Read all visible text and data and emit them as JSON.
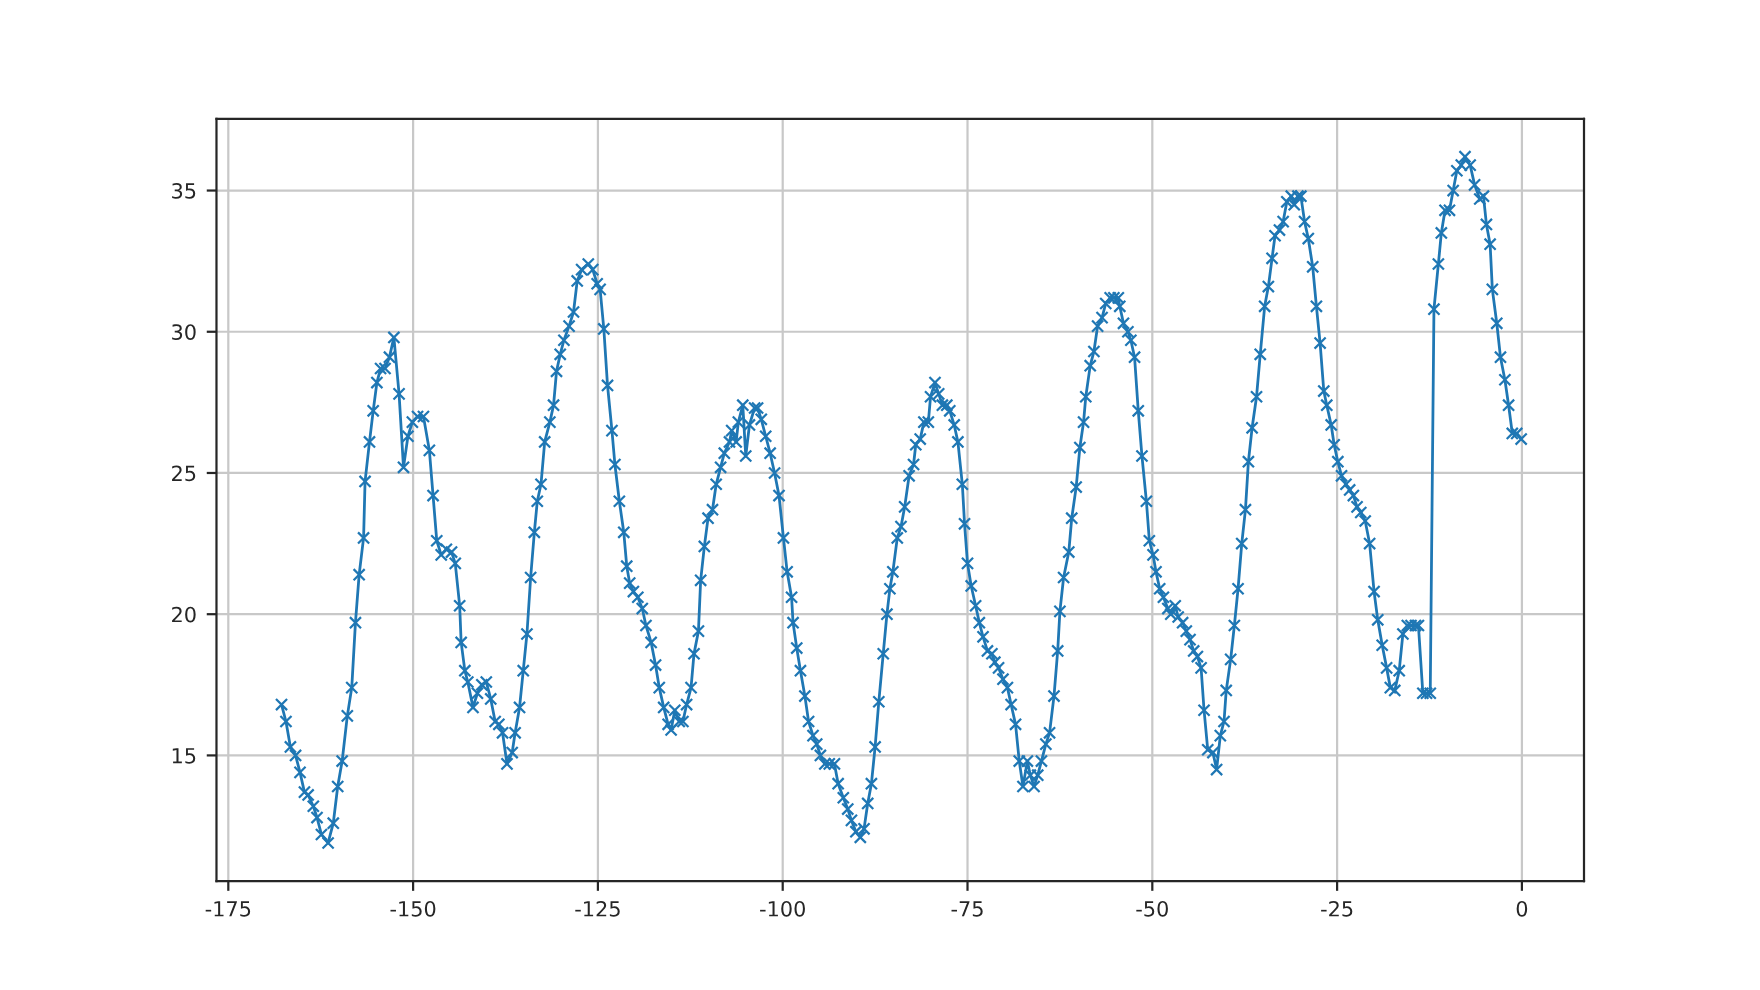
{
  "chart_data": {
    "type": "line",
    "xlim": [
      -176.6,
      8.4
    ],
    "ylim": [
      10.55,
      37.54
    ],
    "xticks": [
      -175,
      -150,
      -125,
      -100,
      -75,
      -50,
      -25,
      0
    ],
    "yticks": [
      15,
      20,
      25,
      30,
      35
    ],
    "grid": true,
    "marker": "cross",
    "line_style": "solid",
    "series": [
      {
        "color": "#1f77b4",
        "x": [
          -167.8,
          -167.2,
          -166.6,
          -165.9,
          -165.3,
          -164.7,
          -164.2,
          -163.5,
          -163.0,
          -162.4,
          -161.5,
          -160.8,
          -160.2,
          -159.6,
          -158.9,
          -158.3,
          -157.8,
          -157.3,
          -156.7,
          -156.5,
          -155.9,
          -155.4,
          -154.9,
          -154.4,
          -153.8,
          -153.2,
          -152.6,
          -151.9,
          -151.3,
          -150.7,
          -150.1,
          -149.4,
          -148.6,
          -147.8,
          -147.3,
          -146.8,
          -146.2,
          -145.5,
          -144.8,
          -144.3,
          -143.7,
          -143.5,
          -143.0,
          -142.6,
          -141.9,
          -141.3,
          -140.7,
          -140.1,
          -139.5,
          -138.9,
          -138.4,
          -137.9,
          -137.3,
          -136.6,
          -136.2,
          -135.6,
          -135.1,
          -134.6,
          -134.1,
          -133.6,
          -133.2,
          -132.7,
          -132.2,
          -131.5,
          -131.0,
          -130.6,
          -130.1,
          -129.6,
          -128.9,
          -128.3,
          -127.8,
          -127.2,
          -126.3,
          -125.7,
          -125.1,
          -124.7,
          -124.2,
          -123.7,
          -123.1,
          -122.7,
          -122.1,
          -121.5,
          -121.1,
          -120.7,
          -120.2,
          -119.6,
          -119.0,
          -118.5,
          -117.8,
          -117.2,
          -116.7,
          -116.1,
          -115.5,
          -115.1,
          -114.6,
          -114.0,
          -113.5,
          -113.0,
          -112.4,
          -112.0,
          -111.4,
          -111.1,
          -110.6,
          -110.1,
          -109.5,
          -109.0,
          -108.4,
          -107.9,
          -107.2,
          -106.9,
          -106.3,
          -106.0,
          -105.4,
          -105.0,
          -104.5,
          -103.8,
          -103.4,
          -102.9,
          -102.3,
          -101.7,
          -101.1,
          -100.5,
          -99.9,
          -99.4,
          -98.8,
          -98.6,
          -98.1,
          -97.6,
          -97.0,
          -96.5,
          -95.9,
          -95.4,
          -94.9,
          -94.3,
          -93.7,
          -93.0,
          -92.5,
          -91.8,
          -91.2,
          -90.7,
          -90.1,
          -89.5,
          -89.0,
          -88.5,
          -88.0,
          -87.5,
          -87.0,
          -86.4,
          -85.9,
          -85.5,
          -85.1,
          -84.5,
          -84.0,
          -83.5,
          -82.9,
          -82.3,
          -82.0,
          -81.4,
          -80.9,
          -80.3,
          -80.0,
          -79.4,
          -78.9,
          -78.4,
          -77.8,
          -77.4,
          -76.8,
          -76.3,
          -75.7,
          -75.4,
          -75.0,
          -74.5,
          -73.9,
          -73.4,
          -72.9,
          -72.3,
          -71.7,
          -71.3,
          -70.8,
          -70.2,
          -69.6,
          -69.1,
          -68.5,
          -68.0,
          -67.5,
          -66.9,
          -66.5,
          -66.0,
          -65.5,
          -65.0,
          -64.4,
          -63.9,
          -63.3,
          -62.8,
          -62.5,
          -62.0,
          -61.3,
          -60.9,
          -60.3,
          -59.8,
          -59.3,
          -59.0,
          -58.4,
          -57.9,
          -57.4,
          -56.8,
          -56.3,
          -55.7,
          -55.2,
          -54.6,
          -54.4,
          -53.9,
          -53.3,
          -52.9,
          -52.4,
          -51.9,
          -51.4,
          -50.8,
          -50.4,
          -49.9,
          -49.5,
          -49.0,
          -48.5,
          -47.9,
          -47.5,
          -46.9,
          -46.5,
          -45.9,
          -45.4,
          -44.9,
          -44.4,
          -43.9,
          -43.4,
          -43.0,
          -42.5,
          -41.8,
          -41.3,
          -40.8,
          -40.3,
          -40.0,
          -39.4,
          -38.9,
          -38.4,
          -37.9,
          -37.4,
          -37.0,
          -36.5,
          -35.9,
          -35.4,
          -34.8,
          -34.3,
          -33.8,
          -33.4,
          -32.8,
          -32.3,
          -31.8,
          -31.2,
          -30.8,
          -30.3,
          -29.9,
          -29.4,
          -28.9,
          -28.3,
          -27.8,
          -27.3,
          -26.8,
          -26.4,
          -25.8,
          -25.4,
          -24.9,
          -24.4,
          -23.8,
          -23.3,
          -22.8,
          -22.3,
          -21.8,
          -21.2,
          -20.6,
          -20.0,
          -19.5,
          -18.9,
          -18.3,
          -17.8,
          -17.2,
          -16.6,
          -16.1,
          -15.5,
          -15.0,
          -14.4,
          -14.0,
          -13.4,
          -12.9,
          -12.4,
          -11.9,
          -11.3,
          -10.9,
          -10.4,
          -9.8,
          -9.3,
          -8.8,
          -8.2,
          -7.7,
          -7.0,
          -6.4,
          -5.7,
          -5.2,
          -4.8,
          -4.3,
          -4.0,
          -3.4,
          -2.9,
          -2.3,
          -1.8,
          -1.3,
          -0.7,
          -0.1
        ],
        "values": [
          16.8,
          16.2,
          15.3,
          15.0,
          14.4,
          13.7,
          13.6,
          13.2,
          12.8,
          12.2,
          11.9,
          12.6,
          13.9,
          14.8,
          16.4,
          17.4,
          19.7,
          21.4,
          22.7,
          24.7,
          26.1,
          27.2,
          28.2,
          28.7,
          28.7,
          29.1,
          29.8,
          27.8,
          25.2,
          26.3,
          26.8,
          27.0,
          27.0,
          25.8,
          24.2,
          22.6,
          22.1,
          22.3,
          22.2,
          21.8,
          20.3,
          19.0,
          18.0,
          17.6,
          16.7,
          17.2,
          17.5,
          17.6,
          17.0,
          16.2,
          16.1,
          15.8,
          14.7,
          15.1,
          15.8,
          16.7,
          18.0,
          19.3,
          21.3,
          22.9,
          24.0,
          24.6,
          26.1,
          26.8,
          27.4,
          28.6,
          29.2,
          29.7,
          30.2,
          30.7,
          31.8,
          32.2,
          32.4,
          32.2,
          31.7,
          31.5,
          30.1,
          28.1,
          26.5,
          25.3,
          24.0,
          22.9,
          21.7,
          21.1,
          20.8,
          20.6,
          20.2,
          19.6,
          19.0,
          18.2,
          17.4,
          16.7,
          16.1,
          15.9,
          16.6,
          16.2,
          16.2,
          16.8,
          17.4,
          18.6,
          19.4,
          21.2,
          22.4,
          23.4,
          23.7,
          24.6,
          25.2,
          25.7,
          26.1,
          26.5,
          26.1,
          26.8,
          27.4,
          25.6,
          26.7,
          27.3,
          27.3,
          26.9,
          26.3,
          25.7,
          25.0,
          24.2,
          22.7,
          21.5,
          20.6,
          19.7,
          18.8,
          18.0,
          17.1,
          16.2,
          15.7,
          15.4,
          15.0,
          14.7,
          14.7,
          14.7,
          14.0,
          13.5,
          13.1,
          12.7,
          12.3,
          12.1,
          12.4,
          13.3,
          14.0,
          15.3,
          16.9,
          18.6,
          20.0,
          20.9,
          21.5,
          22.7,
          23.1,
          23.8,
          24.9,
          25.3,
          26.0,
          26.2,
          26.8,
          26.8,
          27.7,
          28.2,
          27.8,
          27.4,
          27.4,
          27.2,
          26.7,
          26.1,
          24.6,
          23.2,
          21.8,
          21.0,
          20.3,
          19.7,
          19.2,
          18.7,
          18.6,
          18.3,
          18.1,
          17.7,
          17.4,
          16.8,
          16.1,
          14.8,
          13.9,
          14.8,
          14.3,
          13.9,
          14.3,
          14.8,
          15.4,
          15.8,
          17.1,
          18.7,
          20.1,
          21.3,
          22.2,
          23.4,
          24.5,
          25.9,
          26.8,
          27.7,
          28.8,
          29.3,
          30.2,
          30.5,
          31.0,
          31.2,
          31.2,
          31.2,
          30.9,
          30.3,
          30.0,
          29.7,
          29.1,
          27.2,
          25.6,
          24.0,
          22.6,
          22.1,
          21.5,
          20.9,
          20.6,
          20.2,
          20.0,
          20.3,
          19.9,
          19.7,
          19.4,
          19.1,
          18.7,
          18.5,
          18.1,
          16.6,
          15.2,
          15.1,
          14.5,
          15.7,
          16.2,
          17.3,
          18.4,
          19.6,
          20.9,
          22.5,
          23.7,
          25.4,
          26.6,
          27.7,
          29.2,
          30.9,
          31.6,
          32.6,
          33.4,
          33.6,
          33.9,
          34.6,
          34.8,
          34.5,
          34.8,
          34.8,
          33.9,
          33.3,
          32.3,
          30.9,
          29.6,
          27.9,
          27.4,
          26.7,
          26.0,
          25.4,
          24.9,
          24.6,
          24.4,
          24.2,
          23.8,
          23.6,
          23.3,
          22.5,
          20.8,
          19.8,
          18.9,
          18.1,
          17.4,
          17.3,
          18.0,
          19.3,
          19.6,
          19.6,
          19.6,
          19.6,
          17.2,
          17.2,
          17.2,
          30.8,
          32.4,
          33.5,
          34.3,
          34.3,
          35.0,
          35.7,
          35.9,
          36.2,
          35.9,
          35.2,
          34.7,
          34.8,
          33.8,
          33.1,
          31.5,
          30.3,
          29.1,
          28.3,
          27.4,
          26.4,
          26.4,
          26.2
        ]
      }
    ]
  }
}
